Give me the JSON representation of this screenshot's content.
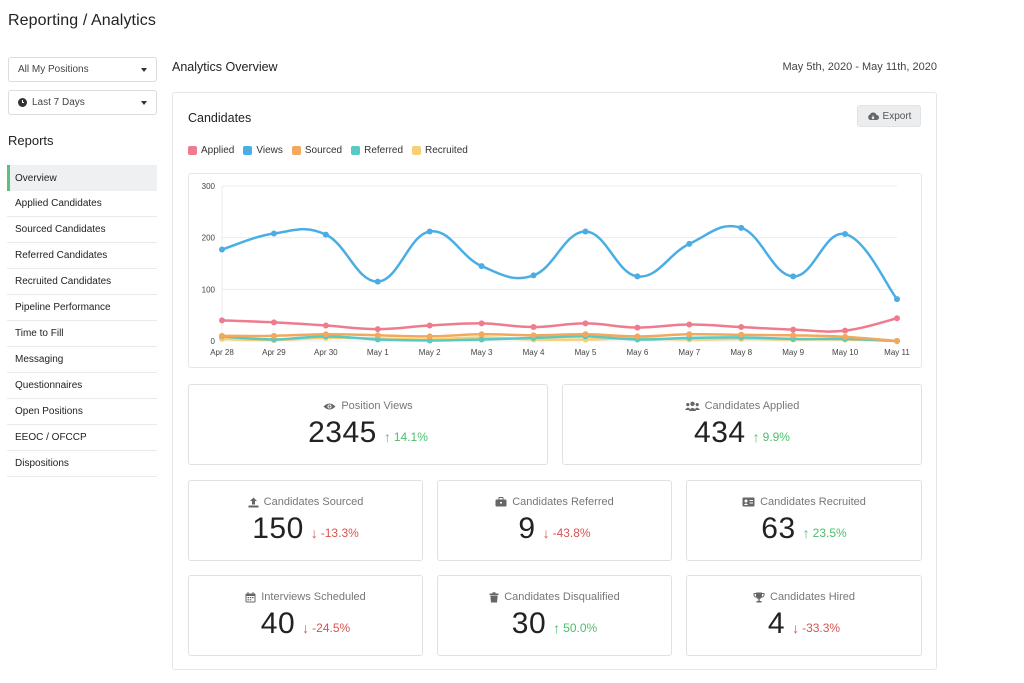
{
  "page": {
    "title": "Reporting / Analytics"
  },
  "filters": {
    "positions": "All My Positions",
    "period": "Last 7 Days"
  },
  "sidebar": {
    "heading": "Reports",
    "items": [
      {
        "label": "Overview",
        "active": true
      },
      {
        "label": "Applied Candidates"
      },
      {
        "label": "Sourced Candidates"
      },
      {
        "label": "Referred Candidates"
      },
      {
        "label": "Recruited Candidates"
      },
      {
        "label": "Pipeline Performance"
      },
      {
        "label": "Time to Fill"
      },
      {
        "label": "Messaging"
      },
      {
        "label": "Questionnaires"
      },
      {
        "label": "Open Positions"
      },
      {
        "label": "EEOC / OFCCP"
      },
      {
        "label": "Dispositions"
      }
    ]
  },
  "main": {
    "title": "Analytics Overview",
    "date_range": "May 5th, 2020 - May 11th, 2020"
  },
  "card": {
    "title": "Candidates",
    "export_label": "Export",
    "export_icon": "cloud-download-icon"
  },
  "colors": {
    "applied": "#ef7b8e",
    "views": "#4aaee4",
    "sourced": "#f3a85b",
    "referred": "#58c9c4",
    "recruited": "#f8d074",
    "up": "#4cbf6f",
    "down": "#d9534f",
    "active_nav": "#5cbf7f"
  },
  "chart_data": {
    "type": "line",
    "categories": [
      "Apr 28",
      "Apr 29",
      "Apr 30",
      "May 1",
      "May 2",
      "May 3",
      "May 4",
      "May 5",
      "May 6",
      "May 7",
      "May 8",
      "May 9",
      "May 10",
      "May 11"
    ],
    "yticks": [
      0,
      100,
      200,
      300
    ],
    "ylim": [
      0,
      300
    ],
    "grid": true,
    "legend_position": "top-left",
    "series": [
      {
        "name": "Applied",
        "color": "#ef7b8e",
        "values": [
          40,
          36,
          30,
          23,
          30,
          34,
          27,
          34,
          26,
          32,
          27,
          22,
          20,
          44
        ]
      },
      {
        "name": "Views",
        "color": "#4aaee4",
        "values": [
          177,
          208,
          206,
          115,
          212,
          145,
          127,
          212,
          125,
          188,
          219,
          125,
          207,
          81
        ]
      },
      {
        "name": "Sourced",
        "color": "#f3a85b",
        "values": [
          10,
          10,
          13,
          11,
          9,
          13,
          11,
          13,
          9,
          13,
          12,
          11,
          8,
          0
        ]
      },
      {
        "name": "Referred",
        "color": "#58c9c4",
        "values": [
          9,
          3,
          9,
          3,
          1,
          3,
          6,
          9,
          3,
          6,
          7,
          4,
          4,
          0
        ]
      },
      {
        "name": "Recruited",
        "color": "#f8d074",
        "values": [
          4,
          2,
          6,
          5,
          3,
          7,
          3,
          3,
          5,
          3,
          4,
          3,
          3,
          0
        ]
      }
    ]
  },
  "stats": [
    {
      "label": "Position Views",
      "icon": "eye-icon",
      "value": "2345",
      "change": "14.1%",
      "direction": "up"
    },
    {
      "label": "Candidates Applied",
      "icon": "users-icon",
      "value": "434",
      "change": "9.9%",
      "direction": "up"
    },
    {
      "label": "Candidates Sourced",
      "icon": "upload-icon",
      "value": "150",
      "change": "-13.3%",
      "direction": "down"
    },
    {
      "label": "Candidates Referred",
      "icon": "briefcase-icon",
      "value": "9",
      "change": "-43.8%",
      "direction": "down"
    },
    {
      "label": "Candidates Recruited",
      "icon": "id-card-icon",
      "value": "63",
      "change": "23.5%",
      "direction": "up"
    },
    {
      "label": "Interviews Scheduled",
      "icon": "calendar-icon",
      "value": "40",
      "change": "-24.5%",
      "direction": "down"
    },
    {
      "label": "Candidates Disqualified",
      "icon": "trash-icon",
      "value": "30",
      "change": "50.0%",
      "direction": "up"
    },
    {
      "label": "Candidates Hired",
      "icon": "trophy-icon",
      "value": "4",
      "change": "-33.3%",
      "direction": "down"
    }
  ]
}
